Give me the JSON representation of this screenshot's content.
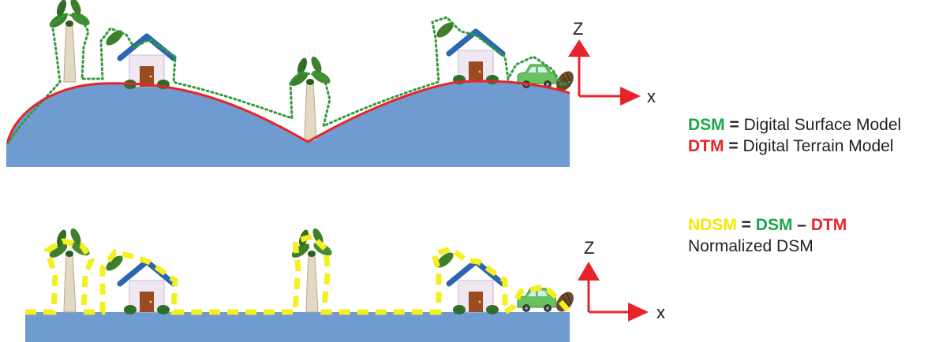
{
  "colors": {
    "terrain": "#6f9bd1",
    "dtm_line": "#e8242b",
    "dsm_outline": "#2e9c3a",
    "ndsm_outline": "#f4ef1f",
    "axis": "#e8242b",
    "dsm_text": "#1aa64b",
    "dtm_text": "#e8242b",
    "ndsm_text": "#f3ea00"
  },
  "axes": {
    "top": {
      "z_label": "Z",
      "x_label": "x"
    },
    "bottom": {
      "z_label": "Z",
      "x_label": "x"
    }
  },
  "legend": {
    "dsm_line": {
      "abbr": "DSM",
      "sep": " = ",
      "text": "Digital Surface Model"
    },
    "dtm_line": {
      "abbr": "DTM",
      "sep": " = ",
      "text": "Digital Terrain Model"
    },
    "ndsm_line": {
      "abbr": "NDSM",
      "eq": " = ",
      "dsm": "DSM",
      "minus": " – ",
      "dtm": "DTM"
    },
    "ndsm_caption": "Normalized DSM"
  },
  "icons": [
    "palm-tree-icon",
    "house-icon",
    "car-icon",
    "bush-icon"
  ]
}
